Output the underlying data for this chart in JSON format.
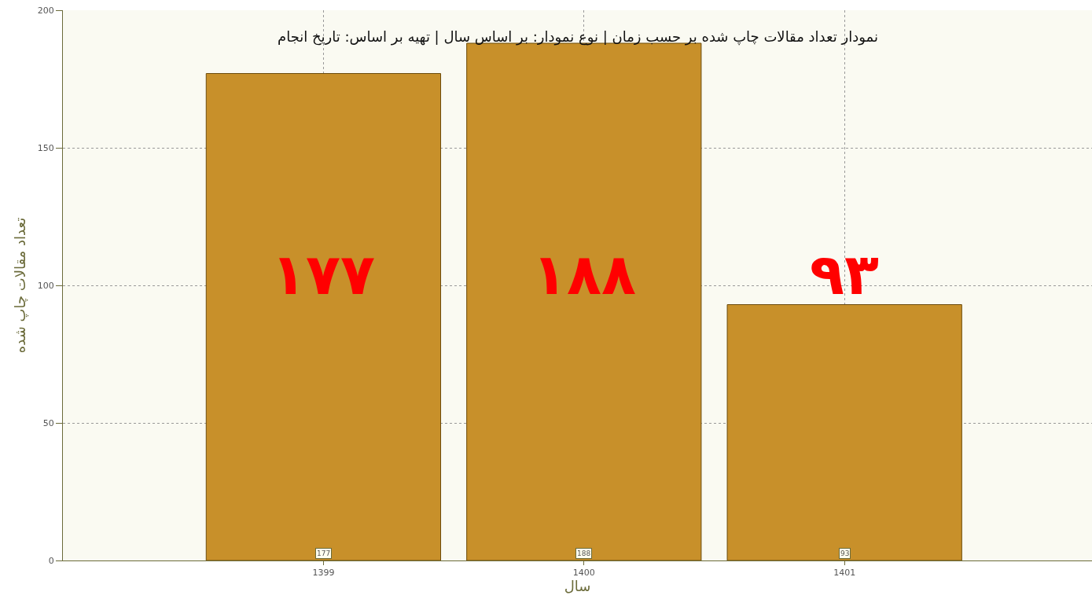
{
  "chart_data": {
    "type": "bar",
    "title": "نمودار تعداد مقالات چاپ شده بر حسب زمان | نوع نمودار: بر اساس سال | تهیه بر اساس: تاریخ انجام",
    "xlabel": "سال",
    "ylabel": "تعداد مقالات چاپ شده",
    "categories": [
      "1399",
      "1400",
      "1401"
    ],
    "values": [
      177,
      188,
      93
    ],
    "color": "#c8902a",
    "ylim": [
      0,
      200
    ],
    "yticks": [
      0,
      50,
      100,
      150,
      200
    ],
    "grid": true,
    "value_labels": [
      "۱۷۷",
      "۱۸۸",
      "۹۳"
    ],
    "annotations": [
      {
        "text": "177",
        "x": "1399",
        "y": 0
      },
      {
        "text": "188",
        "x": "1400",
        "y": 0
      },
      {
        "text": "93",
        "x": "1401",
        "y": 0
      }
    ]
  }
}
